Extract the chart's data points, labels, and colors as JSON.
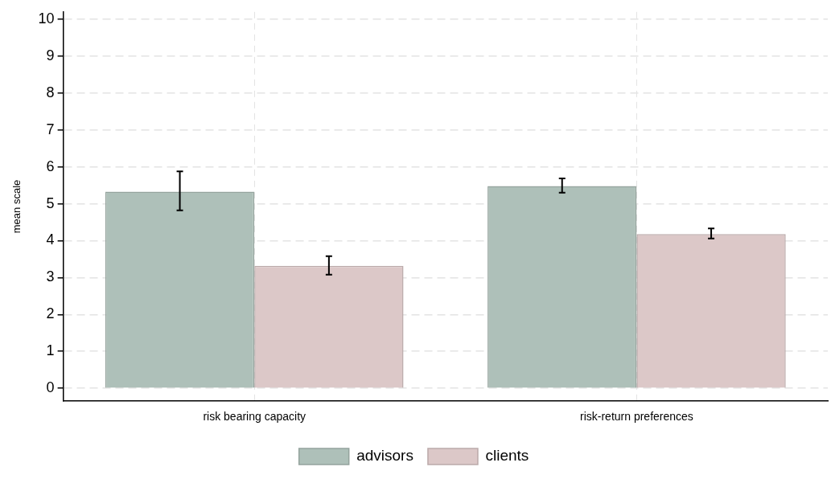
{
  "chart_data": {
    "type": "bar",
    "ylabel": "mean scale",
    "categories": [
      "risk bearing capacity",
      "risk-return preferences"
    ],
    "series": [
      {
        "name": "advisors",
        "color": "#aec0b9",
        "values": [
          5.33,
          5.48
        ],
        "errors": [
          [
            4.82,
            5.88
          ],
          [
            5.3,
            5.69
          ]
        ]
      },
      {
        "name": "clients",
        "color": "#dcc8c8",
        "values": [
          3.32,
          4.18
        ],
        "errors": [
          [
            3.08,
            3.58
          ],
          [
            4.06,
            4.33
          ]
        ]
      }
    ],
    "ylim": [
      -0.35,
      10.2
    ],
    "yticks": [
      0,
      1,
      2,
      3,
      4,
      5,
      6,
      7,
      8,
      9,
      10
    ],
    "grid": true,
    "legend": "bottom"
  }
}
